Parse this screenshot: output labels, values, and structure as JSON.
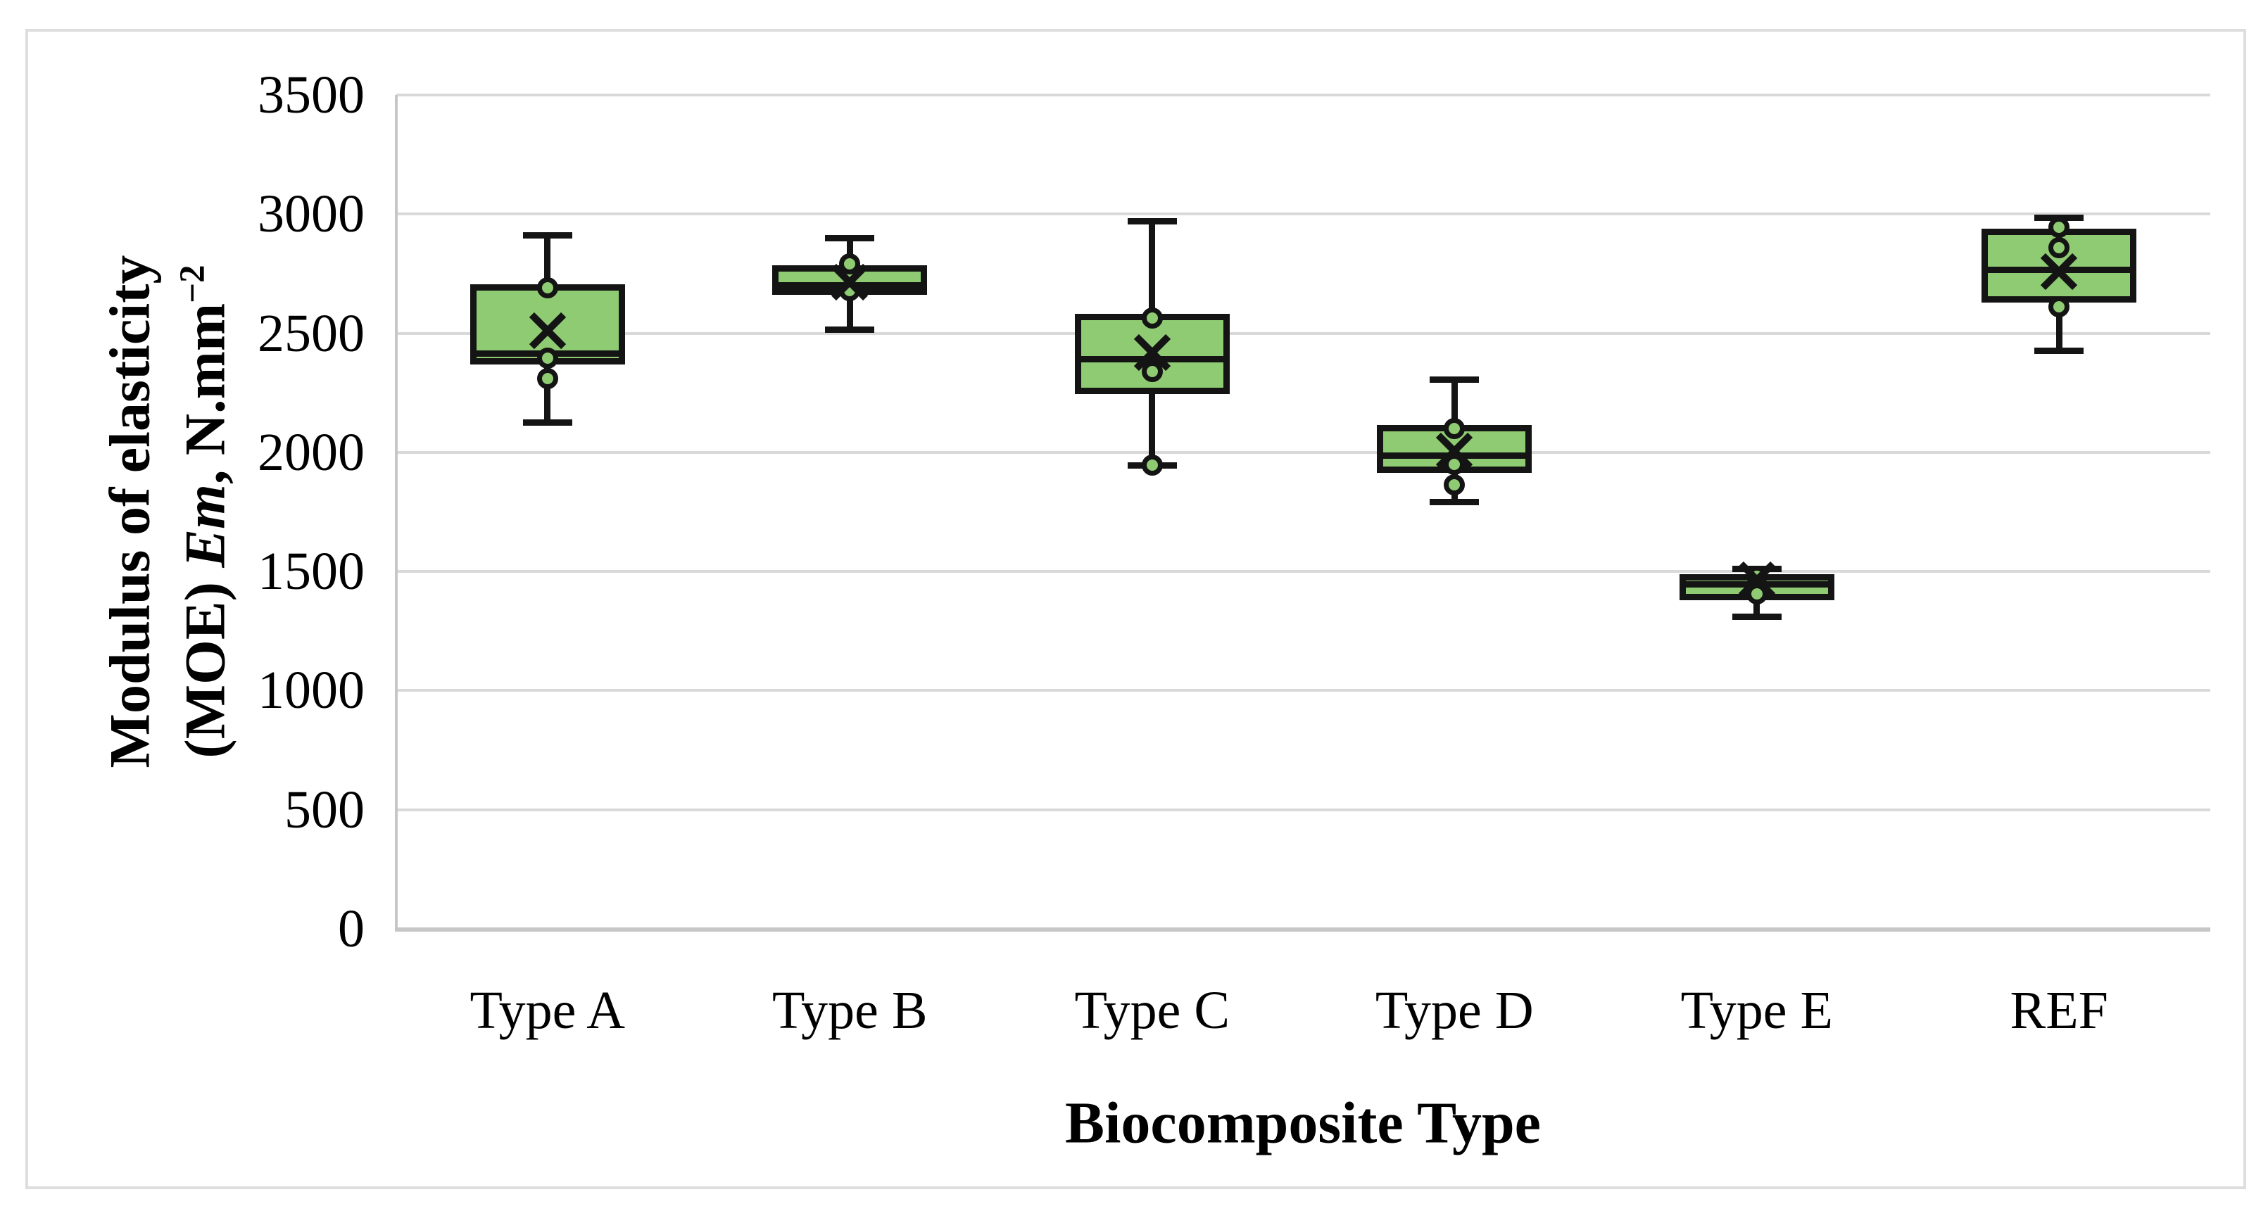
{
  "figure": {
    "background": "#ffffff",
    "border_color": "#dddddd"
  },
  "chart_data": {
    "type": "boxplot",
    "title": "",
    "xlabel": "Biocomposite Type",
    "ylabel": {
      "line1": "Modulus of elasticity",
      "line2_prefix": "(MOE) ",
      "line2_italic": "Em",
      "line2_rest": ", N.mm",
      "line2_sup": "−2"
    },
    "ylim": [
      0,
      3500
    ],
    "ytick_step": 500,
    "yticks": [
      3500,
      3000,
      2500,
      2000,
      1500,
      1000,
      500,
      0
    ],
    "grid": true,
    "legend": false,
    "categories": [
      "Type A",
      "Type B",
      "Type C",
      "Type D",
      "Type E",
      "REF"
    ],
    "series": [
      {
        "category": "Type A",
        "min": 2125,
        "q1": 2370,
        "median": 2415,
        "q3": 2705,
        "max": 2910,
        "mean": 2510,
        "points": [
          2690,
          2395,
          2310
        ]
      },
      {
        "category": "Type B",
        "min": 2515,
        "q1": 2660,
        "median": 2700,
        "q3": 2785,
        "max": 2900,
        "mean": 2715,
        "points": [
          2790,
          2680
        ]
      },
      {
        "category": "Type C",
        "min": 1945,
        "q1": 2245,
        "median": 2390,
        "q3": 2580,
        "max": 2970,
        "mean": 2420,
        "points": [
          2565,
          2340,
          1945
        ]
      },
      {
        "category": "Type D",
        "min": 1790,
        "q1": 1915,
        "median": 1985,
        "q3": 2115,
        "max": 2305,
        "mean": 2005,
        "points": [
          2100,
          1950,
          1865
        ]
      },
      {
        "category": "Type E",
        "min": 1310,
        "q1": 1380,
        "median": 1445,
        "q3": 1490,
        "max": 1510,
        "mean": 1465,
        "points": [
          1480,
          1405
        ]
      },
      {
        "category": "REF",
        "min": 2425,
        "q1": 2630,
        "median": 2765,
        "q3": 2940,
        "max": 2985,
        "mean": 2760,
        "points": [
          2945,
          2860,
          2610
        ]
      }
    ],
    "colors": {
      "box_fill": "#8fcb72",
      "box_stroke": "#141414",
      "gridline": "#d9d9d9",
      "axis_line": "#c6c6c6",
      "text": "#000000"
    }
  }
}
